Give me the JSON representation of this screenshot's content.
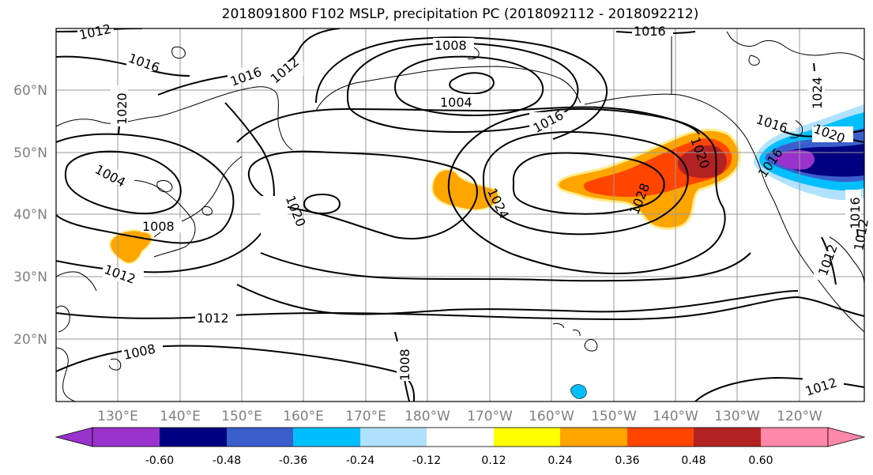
{
  "title": "2018091800 F102 MSLP, precipitation PC (2018092112 - 2018092212)",
  "axes": {
    "lat_labels": [
      "60°N",
      "50°N",
      "40°N",
      "30°N",
      "20°N"
    ],
    "lon_labels": [
      "130°E",
      "140°E",
      "150°E",
      "160°E",
      "170°E",
      "180°W",
      "170°W",
      "160°W",
      "150°W",
      "140°W",
      "130°W",
      "120°W"
    ]
  },
  "contour_labels": [
    "1012",
    "1016",
    "1016",
    "1012",
    "1008",
    "1016",
    "1004",
    "1016",
    "1020",
    "1016",
    "1024",
    "1020",
    "1004",
    "1008",
    "1020",
    "1012",
    "1024",
    "1028",
    "1020",
    "1016",
    "1012",
    "1012",
    "1008",
    "1008",
    "1012",
    "1016",
    "1012"
  ],
  "colorbar": {
    "colors": [
      "#9933cc",
      "#000080",
      "#3a5fcd",
      "#00bfff",
      "#b0e2ff",
      "#ffffff",
      "#ffff00",
      "#ffa500",
      "#ff4500",
      "#b22222",
      "#ff88aa"
    ],
    "tick_labels": [
      "-0.60",
      "-0.48",
      "-0.36",
      "-0.24",
      "-0.12",
      "0.12",
      "0.24",
      "0.36",
      "0.48",
      "0.60"
    ]
  },
  "palette": {
    "light_yellow": "#ffec8b",
    "orange": "#ffa500",
    "red_orange": "#ff4500",
    "dark_red": "#b22222",
    "purple": "#9933cc",
    "navy": "#000080",
    "blue": "#3a5fcd",
    "sky": "#00bfff",
    "pale_sky": "#b0e2ff"
  }
}
